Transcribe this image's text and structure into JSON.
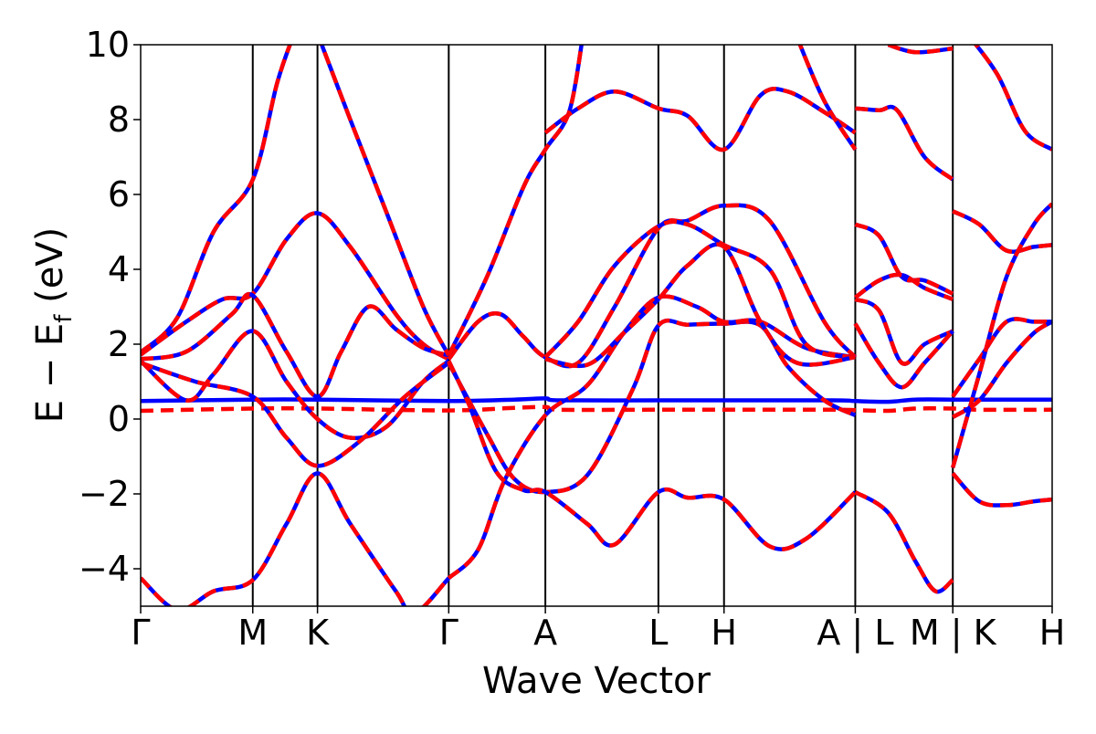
{
  "chart_data": {
    "type": "line",
    "title": "",
    "xlabel": "Wave Vector",
    "ylabel": {
      "main": "E − E",
      "sub": "f",
      "unit": " (eV)"
    },
    "ylim": [
      -5,
      10
    ],
    "yticks": [
      -4,
      -2,
      0,
      2,
      4,
      6,
      8,
      10
    ],
    "ytick_labels": [
      "−4",
      "−2",
      "0",
      "2",
      "4",
      "6",
      "8",
      "10"
    ],
    "xlim": [
      0,
      10
    ],
    "kpoints": [
      {
        "label": "Γ",
        "x": 0.0
      },
      {
        "label": "M",
        "x": 1.23
      },
      {
        "label": "K",
        "x": 1.94
      },
      {
        "label": "Γ",
        "x": 3.38
      },
      {
        "label": "A",
        "x": 4.44
      },
      {
        "label": "L",
        "x": 5.68
      },
      {
        "label": "H",
        "x": 6.4
      },
      {
        "label": "A | L",
        "x": 7.84
      },
      {
        "label": "M | K",
        "x": 8.91
      },
      {
        "label": "H",
        "x": 10.0
      }
    ],
    "vertical_lines_at": [
      1.23,
      1.94,
      3.38,
      4.44,
      5.68,
      6.4,
      7.84,
      8.91
    ],
    "colors": {
      "blue": "#0000ff",
      "red": "#ff0000",
      "axis": "#000000"
    },
    "series": [
      {
        "color": "blue",
        "style": "solid",
        "points": [
          [
            0,
            0.48
          ],
          [
            1.23,
            0.52
          ],
          [
            1.94,
            0.52
          ],
          [
            3.38,
            0.48
          ],
          [
            4.1,
            0.52
          ],
          [
            4.44,
            0.55
          ],
          [
            4.6,
            0.5
          ],
          [
            5.68,
            0.5
          ],
          [
            6.4,
            0.5
          ],
          [
            7.6,
            0.5
          ],
          [
            7.84,
            0.48
          ],
          [
            8.2,
            0.46
          ],
          [
            8.5,
            0.52
          ],
          [
            8.91,
            0.52
          ],
          [
            9.2,
            0.52
          ],
          [
            10,
            0.52
          ]
        ]
      },
      {
        "color": "red",
        "style": "dashed",
        "points": [
          [
            0,
            0.22
          ],
          [
            1.23,
            0.28
          ],
          [
            1.94,
            0.28
          ],
          [
            3.38,
            0.23
          ],
          [
            4.1,
            0.3
          ],
          [
            4.44,
            0.32
          ],
          [
            4.6,
            0.25
          ],
          [
            5.68,
            0.25
          ],
          [
            6.4,
            0.25
          ],
          [
            7.6,
            0.25
          ],
          [
            7.84,
            0.24
          ],
          [
            8.2,
            0.22
          ],
          [
            8.5,
            0.28
          ],
          [
            8.91,
            0.28
          ],
          [
            9.2,
            0.25
          ],
          [
            10,
            0.25
          ]
        ]
      },
      {
        "color": "both",
        "style": "solid",
        "points": [
          [
            0,
            1.78
          ],
          [
            0.4,
            2.7
          ],
          [
            0.8,
            5.0
          ],
          [
            1.23,
            6.4
          ],
          [
            1.5,
            9.0
          ],
          [
            1.7,
            10.4
          ]
        ]
      },
      {
        "color": "both",
        "style": "solid",
        "points": [
          [
            0,
            1.72
          ],
          [
            0.5,
            2.6
          ],
          [
            0.9,
            3.2
          ],
          [
            1.23,
            3.35
          ],
          [
            1.6,
            4.8
          ],
          [
            1.94,
            5.5
          ],
          [
            2.3,
            4.6
          ],
          [
            2.8,
            2.8
          ],
          [
            3.1,
            2.0
          ],
          [
            3.38,
            1.6
          ]
        ]
      },
      {
        "color": "both",
        "style": "solid",
        "points": [
          [
            0,
            1.6
          ],
          [
            0.5,
            1.8
          ],
          [
            1.0,
            2.8
          ],
          [
            1.23,
            3.3
          ],
          [
            1.6,
            1.8
          ],
          [
            1.94,
            0.6
          ],
          [
            2.2,
            1.8
          ],
          [
            2.5,
            3.0
          ],
          [
            2.8,
            2.4
          ],
          [
            3.1,
            1.9
          ],
          [
            3.38,
            1.7
          ]
        ]
      },
      {
        "color": "both",
        "style": "solid",
        "points": [
          [
            0,
            1.55
          ],
          [
            0.5,
            0.5
          ],
          [
            0.8,
            1.2
          ],
          [
            1.23,
            2.35
          ],
          [
            1.6,
            1.0
          ],
          [
            1.94,
            0.0
          ],
          [
            2.3,
            -0.5
          ],
          [
            2.7,
            -0.2
          ],
          [
            3.1,
            1.0
          ],
          [
            3.38,
            1.55
          ]
        ]
      },
      {
        "color": "both",
        "style": "solid",
        "points": [
          [
            0,
            1.5
          ],
          [
            0.6,
            1.0
          ],
          [
            1.23,
            0.6
          ],
          [
            1.6,
            -0.5
          ],
          [
            1.94,
            -1.25
          ],
          [
            2.4,
            -0.6
          ],
          [
            2.9,
            0.6
          ],
          [
            3.38,
            1.5
          ]
        ]
      },
      {
        "color": "both",
        "style": "solid",
        "points": [
          [
            0,
            -4.25
          ],
          [
            0.4,
            -5.1
          ],
          [
            0.8,
            -4.6
          ],
          [
            1.23,
            -4.3
          ],
          [
            1.6,
            -2.8
          ],
          [
            1.94,
            -1.45
          ],
          [
            2.3,
            -2.8
          ],
          [
            2.8,
            -4.6
          ],
          [
            3.0,
            -5.2
          ],
          [
            3.38,
            -4.25
          ]
        ]
      },
      {
        "color": "both",
        "style": "solid",
        "points": [
          [
            1.94,
            10.3
          ],
          [
            2.3,
            8.0
          ],
          [
            2.7,
            5.5
          ],
          [
            3.1,
            3.0
          ],
          [
            3.38,
            1.7
          ]
        ]
      },
      {
        "color": "both",
        "style": "solid",
        "points": [
          [
            3.38,
            1.6
          ],
          [
            3.7,
            2.6
          ],
          [
            3.95,
            2.8
          ],
          [
            4.2,
            2.2
          ],
          [
            4.44,
            1.65
          ],
          [
            4.8,
            1.5
          ],
          [
            5.2,
            3.0
          ],
          [
            5.68,
            5.1
          ],
          [
            6.0,
            5.3
          ],
          [
            6.4,
            5.7
          ],
          [
            6.9,
            5.3
          ],
          [
            7.5,
            2.6
          ],
          [
            7.84,
            1.65
          ]
        ]
      },
      {
        "color": "both",
        "style": "solid",
        "points": [
          [
            3.38,
            1.5
          ],
          [
            3.8,
            -0.4
          ],
          [
            4.1,
            -1.6
          ],
          [
            4.44,
            -1.95
          ],
          [
            4.9,
            -1.5
          ],
          [
            5.4,
            0.8
          ],
          [
            5.68,
            2.5
          ],
          [
            6.0,
            2.52
          ],
          [
            6.4,
            2.55
          ],
          [
            6.8,
            2.5
          ],
          [
            7.1,
            1.4
          ],
          [
            7.5,
            0.5
          ],
          [
            7.84,
            0.1
          ]
        ]
      },
      {
        "color": "both",
        "style": "solid",
        "points": [
          [
            3.38,
            1.7
          ],
          [
            3.8,
            3.8
          ],
          [
            4.2,
            6.2
          ],
          [
            4.44,
            7.2
          ],
          [
            4.7,
            8.2
          ],
          [
            4.85,
            10.2
          ]
        ]
      },
      {
        "color": "both",
        "style": "solid",
        "points": [
          [
            3.38,
            -4.25
          ],
          [
            3.7,
            -3.5
          ],
          [
            4.0,
            -1.6
          ],
          [
            4.44,
            0.1
          ],
          [
            4.9,
            0.9
          ],
          [
            5.3,
            2.3
          ],
          [
            5.68,
            3.25
          ],
          [
            6.1,
            3.0
          ],
          [
            6.4,
            2.6
          ],
          [
            6.8,
            2.6
          ],
          [
            7.3,
            1.9
          ],
          [
            7.84,
            1.65
          ]
        ]
      },
      {
        "color": "both",
        "style": "solid",
        "points": [
          [
            3.38,
            1.55
          ],
          [
            3.6,
            0.4
          ],
          [
            3.9,
            -1.4
          ],
          [
            4.2,
            -1.9
          ],
          [
            4.44,
            -1.95
          ],
          [
            4.9,
            -2.8
          ],
          [
            5.2,
            -3.35
          ],
          [
            5.68,
            -1.95
          ],
          [
            6.0,
            -2.1
          ],
          [
            6.4,
            -2.15
          ],
          [
            6.9,
            -3.4
          ],
          [
            7.3,
            -3.2
          ],
          [
            7.84,
            -1.95
          ]
        ]
      },
      {
        "color": "both",
        "style": "solid",
        "points": [
          [
            4.44,
            7.65
          ],
          [
            4.8,
            8.3
          ],
          [
            5.2,
            8.75
          ],
          [
            5.68,
            8.3
          ],
          [
            6.0,
            8.1
          ],
          [
            6.4,
            7.2
          ],
          [
            6.8,
            8.65
          ],
          [
            7.1,
            8.75
          ],
          [
            7.5,
            8.2
          ],
          [
            7.84,
            7.65
          ]
        ]
      },
      {
        "color": "both",
        "style": "solid",
        "points": [
          [
            4.44,
            1.65
          ],
          [
            4.8,
            2.6
          ],
          [
            5.2,
            4.1
          ],
          [
            5.68,
            5.15
          ],
          [
            6.0,
            5.2
          ],
          [
            6.4,
            4.65
          ],
          [
            6.9,
            4.0
          ],
          [
            7.3,
            2.0
          ],
          [
            7.84,
            1.65
          ]
        ]
      },
      {
        "color": "both",
        "style": "solid",
        "points": [
          [
            4.44,
            1.6
          ],
          [
            4.9,
            1.45
          ],
          [
            5.3,
            2.3
          ],
          [
            5.68,
            3.2
          ],
          [
            6.0,
            4.1
          ],
          [
            6.4,
            4.6
          ],
          [
            6.8,
            2.6
          ],
          [
            7.2,
            1.5
          ],
          [
            7.84,
            1.65
          ]
        ]
      },
      {
        "color": "both",
        "style": "solid",
        "points": [
          [
            7.2,
            10.2
          ],
          [
            7.5,
            8.5
          ],
          [
            7.84,
            7.2
          ]
        ]
      },
      {
        "color": "both",
        "style": "solid",
        "points": [
          [
            7.84,
            8.3
          ],
          [
            8.1,
            8.25
          ],
          [
            8.3,
            8.25
          ],
          [
            8.6,
            7.0
          ],
          [
            8.91,
            6.4
          ]
        ]
      },
      {
        "color": "both",
        "style": "solid",
        "points": [
          [
            7.84,
            5.2
          ],
          [
            8.1,
            4.9
          ],
          [
            8.35,
            3.8
          ],
          [
            8.6,
            3.7
          ],
          [
            8.91,
            3.35
          ]
        ]
      },
      {
        "color": "both",
        "style": "solid",
        "points": [
          [
            7.84,
            3.25
          ],
          [
            8.1,
            3.7
          ],
          [
            8.35,
            3.85
          ],
          [
            8.6,
            3.5
          ],
          [
            8.91,
            3.2
          ]
        ]
      },
      {
        "color": "both",
        "style": "solid",
        "points": [
          [
            7.84,
            3.2
          ],
          [
            8.1,
            2.9
          ],
          [
            8.35,
            1.5
          ],
          [
            8.6,
            2.0
          ],
          [
            8.91,
            2.35
          ]
        ]
      },
      {
        "color": "both",
        "style": "solid",
        "points": [
          [
            7.84,
            2.55
          ],
          [
            8.1,
            1.5
          ],
          [
            8.35,
            0.85
          ],
          [
            8.6,
            1.5
          ],
          [
            8.91,
            2.35
          ]
        ]
      },
      {
        "color": "both",
        "style": "solid",
        "points": [
          [
            7.84,
            -1.95
          ],
          [
            8.2,
            -2.5
          ],
          [
            8.5,
            -3.8
          ],
          [
            8.72,
            -4.6
          ],
          [
            8.91,
            -4.3
          ]
        ]
      },
      {
        "color": "both",
        "style": "solid",
        "points": [
          [
            8.2,
            10.0
          ],
          [
            8.5,
            9.8
          ],
          [
            8.91,
            9.9
          ]
        ]
      },
      {
        "color": "both",
        "style": "solid",
        "points": [
          [
            8.91,
            5.55
          ],
          [
            9.2,
            5.2
          ],
          [
            9.5,
            4.5
          ],
          [
            9.8,
            4.6
          ],
          [
            10,
            4.65
          ]
        ]
      },
      {
        "color": "both",
        "style": "solid",
        "points": [
          [
            8.91,
            0.6
          ],
          [
            9.2,
            1.6
          ],
          [
            9.5,
            2.6
          ],
          [
            9.8,
            2.6
          ],
          [
            10,
            2.6
          ]
        ]
      },
      {
        "color": "both",
        "style": "solid",
        "points": [
          [
            8.91,
            -1.3
          ],
          [
            9.2,
            1.2
          ],
          [
            9.5,
            3.8
          ],
          [
            9.8,
            5.2
          ],
          [
            10,
            5.75
          ]
        ]
      },
      {
        "color": "both",
        "style": "solid",
        "points": [
          [
            8.91,
            0.05
          ],
          [
            9.2,
            0.5
          ],
          [
            9.5,
            1.5
          ],
          [
            9.8,
            2.3
          ],
          [
            10,
            2.6
          ]
        ]
      },
      {
        "color": "both",
        "style": "solid",
        "points": [
          [
            8.91,
            -1.45
          ],
          [
            9.2,
            -2.2
          ],
          [
            9.5,
            -2.3
          ],
          [
            9.8,
            -2.2
          ],
          [
            10,
            -2.15
          ]
        ]
      },
      {
        "color": "both",
        "style": "solid",
        "points": [
          [
            9.1,
            10.2
          ],
          [
            9.4,
            9.2
          ],
          [
            9.7,
            7.7
          ],
          [
            10,
            7.2
          ]
        ]
      }
    ]
  }
}
